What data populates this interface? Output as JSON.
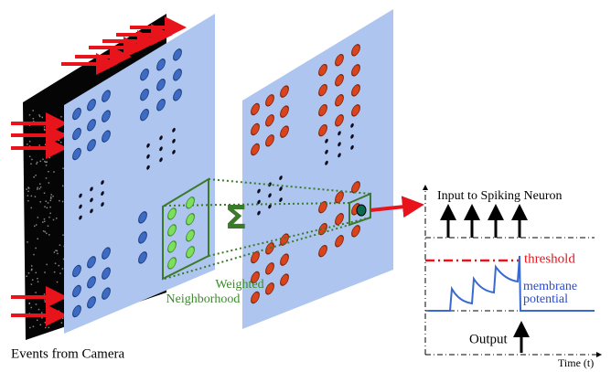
{
  "labels": {
    "camera": "Events from Camera",
    "weighted": "Weighted",
    "neighborhood": "Neighborhood",
    "sum": "Σ"
  },
  "graph": {
    "input": "Input to Spiking Neuron",
    "threshold": "threshold",
    "membrane": "membrane",
    "potential": "potential",
    "output": "Output",
    "time": "Time (t)"
  }
}
